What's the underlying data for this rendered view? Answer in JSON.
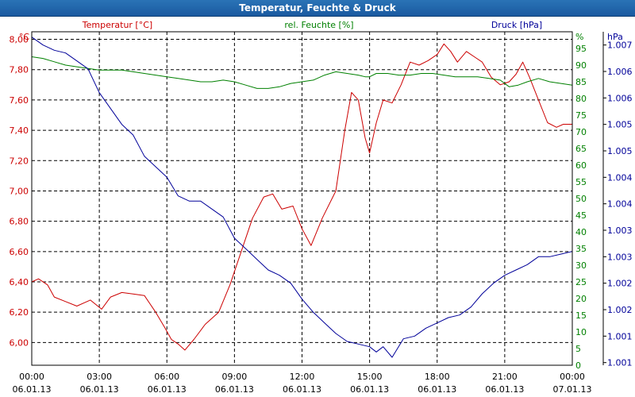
{
  "window": {
    "title": "Temperatur, Feuchte & Druck"
  },
  "colors": {
    "temperature": "#cc0000",
    "humidity": "#008000",
    "pressure": "#000099",
    "titlebar": "#1f64a8"
  },
  "chart_data": {
    "type": "line",
    "title": "Temperatur, Feuchte & Druck",
    "legend": {
      "temperature": "Temperatur [°C]",
      "humidity": "rel. Feuchte [%]",
      "pressure": "Druck [hPa]"
    },
    "axes": {
      "temperature": {
        "unit": "°C",
        "ylim": [
          5.85,
          8.05
        ],
        "ticks": [
          "8,00",
          "7,80",
          "7,60",
          "7,40",
          "7,20",
          "7,00",
          "6,80",
          "6,60",
          "6,40",
          "6,20",
          "6,00"
        ]
      },
      "humidity": {
        "unit": "%",
        "ylim": [
          0,
          100
        ],
        "ticks": [
          "95",
          "90",
          "85",
          "80",
          "75",
          "70",
          "65",
          "60",
          "55",
          "50",
          "45",
          "40",
          "35",
          "30",
          "25",
          "20",
          "15",
          "10",
          "5",
          "0"
        ]
      },
      "pressure": {
        "unit": "hPa",
        "ylim": [
          1000.95,
          1007.25
        ],
        "ticks": [
          "1.007",
          "1.006",
          "1.006",
          "1.005",
          "1.005",
          "1.004",
          "1.004",
          "1.003",
          "1.003",
          "1.002",
          "1.002",
          "1.001",
          "1.001"
        ]
      }
    },
    "x": {
      "range_hours": [
        0,
        24
      ],
      "ticks": [
        {
          "time": "00:00",
          "date": "06.01.13"
        },
        {
          "time": "03:00",
          "date": "06.01.13"
        },
        {
          "time": "06:00",
          "date": "06.01.13"
        },
        {
          "time": "09:00",
          "date": "06.01.13"
        },
        {
          "time": "12:00",
          "date": "06.01.13"
        },
        {
          "time": "15:00",
          "date": "06.01.13"
        },
        {
          "time": "18:00",
          "date": "06.01.13"
        },
        {
          "time": "21:00",
          "date": "06.01.13"
        },
        {
          "time": "00:00",
          "date": "07.01.13"
        }
      ]
    },
    "series": [
      {
        "name": "Temperatur",
        "axis": "temperature",
        "points": [
          [
            0,
            6.4
          ],
          [
            0.3,
            6.42
          ],
          [
            0.7,
            6.38
          ],
          [
            1.0,
            6.3
          ],
          [
            1.5,
            6.27
          ],
          [
            2.0,
            6.24
          ],
          [
            2.6,
            6.28
          ],
          [
            3.1,
            6.22
          ],
          [
            3.5,
            6.3
          ],
          [
            4.0,
            6.33
          ],
          [
            4.5,
            6.32
          ],
          [
            5.0,
            6.31
          ],
          [
            5.5,
            6.2
          ],
          [
            5.9,
            6.1
          ],
          [
            6.2,
            6.02
          ],
          [
            6.5,
            5.99
          ],
          [
            6.8,
            5.95
          ],
          [
            7.2,
            6.02
          ],
          [
            7.7,
            6.12
          ],
          [
            8.3,
            6.2
          ],
          [
            8.8,
            6.38
          ],
          [
            9.3,
            6.6
          ],
          [
            9.8,
            6.82
          ],
          [
            10.3,
            6.96
          ],
          [
            10.7,
            6.98
          ],
          [
            11.1,
            6.88
          ],
          [
            11.6,
            6.9
          ],
          [
            12.0,
            6.75
          ],
          [
            12.4,
            6.64
          ],
          [
            12.9,
            6.82
          ],
          [
            13.5,
            7.0
          ],
          [
            13.9,
            7.4
          ],
          [
            14.2,
            7.65
          ],
          [
            14.5,
            7.6
          ],
          [
            14.8,
            7.35
          ],
          [
            15.0,
            7.25
          ],
          [
            15.3,
            7.45
          ],
          [
            15.6,
            7.6
          ],
          [
            16.0,
            7.58
          ],
          [
            16.4,
            7.7
          ],
          [
            16.8,
            7.85
          ],
          [
            17.2,
            7.83
          ],
          [
            17.6,
            7.86
          ],
          [
            18.0,
            7.9
          ],
          [
            18.3,
            7.97
          ],
          [
            18.6,
            7.92
          ],
          [
            18.9,
            7.85
          ],
          [
            19.3,
            7.92
          ],
          [
            19.7,
            7.88
          ],
          [
            20.0,
            7.85
          ],
          [
            20.4,
            7.75
          ],
          [
            20.8,
            7.7
          ],
          [
            21.2,
            7.72
          ],
          [
            21.5,
            7.77
          ],
          [
            21.8,
            7.85
          ],
          [
            22.1,
            7.75
          ],
          [
            22.5,
            7.6
          ],
          [
            22.9,
            7.45
          ],
          [
            23.3,
            7.42
          ],
          [
            23.6,
            7.44
          ],
          [
            24.0,
            7.44
          ]
        ]
      },
      {
        "name": "rel. Feuchte",
        "axis": "humidity",
        "points": [
          [
            0,
            92.5
          ],
          [
            0.5,
            92
          ],
          [
            1.0,
            91
          ],
          [
            1.5,
            90
          ],
          [
            2.0,
            89.5
          ],
          [
            2.5,
            89
          ],
          [
            3.0,
            88.5
          ],
          [
            3.5,
            88.5
          ],
          [
            4.0,
            88.5
          ],
          [
            4.5,
            88
          ],
          [
            5.0,
            87.5
          ],
          [
            5.5,
            87
          ],
          [
            6.0,
            86.5
          ],
          [
            6.5,
            86
          ],
          [
            7.0,
            85.5
          ],
          [
            7.5,
            85
          ],
          [
            8.0,
            85
          ],
          [
            8.5,
            85.5
          ],
          [
            9.0,
            85
          ],
          [
            9.5,
            84
          ],
          [
            10.0,
            83
          ],
          [
            10.5,
            83
          ],
          [
            11.0,
            83.5
          ],
          [
            11.5,
            84.5
          ],
          [
            12.0,
            85
          ],
          [
            12.5,
            85.5
          ],
          [
            13.0,
            87
          ],
          [
            13.5,
            88
          ],
          [
            14.0,
            87.5
          ],
          [
            14.5,
            87
          ],
          [
            14.8,
            86.5
          ],
          [
            15.0,
            86.5
          ],
          [
            15.3,
            87.5
          ],
          [
            15.8,
            87.5
          ],
          [
            16.3,
            87
          ],
          [
            16.8,
            87
          ],
          [
            17.3,
            87.5
          ],
          [
            17.8,
            87.5
          ],
          [
            18.3,
            87
          ],
          [
            18.8,
            86.5
          ],
          [
            19.3,
            86.5
          ],
          [
            19.8,
            86.5
          ],
          [
            20.3,
            86
          ],
          [
            20.8,
            85.5
          ],
          [
            21.2,
            83.5
          ],
          [
            21.6,
            84
          ],
          [
            22.0,
            85
          ],
          [
            22.5,
            86
          ],
          [
            23.0,
            85
          ],
          [
            23.5,
            84.5
          ],
          [
            24.0,
            84
          ]
        ]
      },
      {
        "name": "Druck",
        "axis": "pressure",
        "points": [
          [
            0,
            1007.15
          ],
          [
            0.5,
            1007.0
          ],
          [
            1.0,
            1006.9
          ],
          [
            1.5,
            1006.85
          ],
          [
            2.0,
            1006.7
          ],
          [
            2.5,
            1006.55
          ],
          [
            3.0,
            1006.1
          ],
          [
            3.5,
            1005.8
          ],
          [
            4.0,
            1005.5
          ],
          [
            4.5,
            1005.3
          ],
          [
            5.0,
            1004.9
          ],
          [
            5.5,
            1004.7
          ],
          [
            6.0,
            1004.5
          ],
          [
            6.5,
            1004.15
          ],
          [
            7.0,
            1004.05
          ],
          [
            7.5,
            1004.05
          ],
          [
            8.0,
            1003.9
          ],
          [
            8.5,
            1003.75
          ],
          [
            9.0,
            1003.35
          ],
          [
            9.5,
            1003.15
          ],
          [
            10.0,
            1002.95
          ],
          [
            10.5,
            1002.75
          ],
          [
            11.0,
            1002.65
          ],
          [
            11.5,
            1002.5
          ],
          [
            12.0,
            1002.2
          ],
          [
            12.5,
            1001.95
          ],
          [
            13.0,
            1001.75
          ],
          [
            13.5,
            1001.55
          ],
          [
            14.0,
            1001.4
          ],
          [
            14.5,
            1001.35
          ],
          [
            15.0,
            1001.3
          ],
          [
            15.3,
            1001.2
          ],
          [
            15.6,
            1001.3
          ],
          [
            16.0,
            1001.1
          ],
          [
            16.5,
            1001.45
          ],
          [
            17.0,
            1001.5
          ],
          [
            17.5,
            1001.65
          ],
          [
            18.0,
            1001.75
          ],
          [
            18.5,
            1001.85
          ],
          [
            19.0,
            1001.9
          ],
          [
            19.5,
            1002.05
          ],
          [
            20.0,
            1002.3
          ],
          [
            20.5,
            1002.5
          ],
          [
            21.0,
            1002.65
          ],
          [
            21.5,
            1002.75
          ],
          [
            22.0,
            1002.85
          ],
          [
            22.5,
            1003.0
          ],
          [
            23.0,
            1003.0
          ],
          [
            23.5,
            1003.05
          ],
          [
            24.0,
            1003.1
          ]
        ]
      }
    ]
  }
}
